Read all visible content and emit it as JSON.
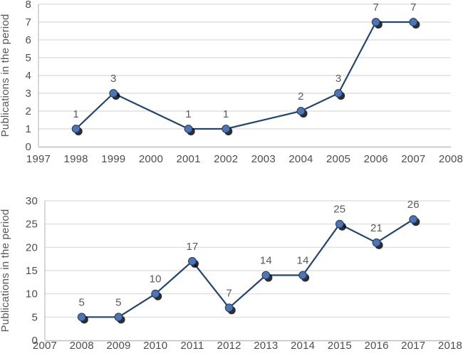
{
  "page": {
    "background": "#ffffff",
    "description": "Two stacked line charts of publications per year"
  },
  "colors": {
    "line": "#24466e",
    "marker_fill": "#4f74b2",
    "marker_stroke": "#1f3864",
    "marker_shadow": "#000000",
    "gridline": "#d9d9d9",
    "axis_line": "#bfbfbf",
    "tick_text": "#4d4d4d",
    "data_label_text": "#595959",
    "axis_title_text": "#595959"
  },
  "chart_data": [
    {
      "type": "line",
      "title": "",
      "xlabel": "",
      "ylabel": "Publications in the period",
      "x_ticks": [
        1997,
        1998,
        1999,
        2000,
        2001,
        2002,
        2003,
        2004,
        2005,
        2006,
        2007,
        2008
      ],
      "x": [
        1998,
        1999,
        2001,
        2002,
        2004,
        2005,
        2006,
        2007
      ],
      "values": [
        1,
        3,
        1,
        1,
        2,
        3,
        7,
        7
      ],
      "data_labels": [
        "1",
        "3",
        "1",
        "1",
        "2",
        "3",
        "7",
        "7"
      ],
      "ylim": [
        0,
        8
      ],
      "ytick_step": 1,
      "grid": true,
      "legend": "none"
    },
    {
      "type": "line",
      "title": "",
      "xlabel": "",
      "ylabel": "Publications in the period",
      "x_ticks": [
        2007,
        2008,
        2009,
        2010,
        2011,
        2012,
        2013,
        2014,
        2015,
        2016,
        2017,
        2018
      ],
      "x": [
        2008,
        2009,
        2010,
        2011,
        2012,
        2013,
        2014,
        2015,
        2016,
        2017
      ],
      "values": [
        5,
        5,
        10,
        17,
        7,
        14,
        14,
        25,
        21,
        26
      ],
      "data_labels": [
        "5",
        "5",
        "10",
        "17",
        "7",
        "14",
        "14",
        "25",
        "21",
        "26"
      ],
      "ylim": [
        0,
        30
      ],
      "ytick_step": 5,
      "grid": true,
      "legend": "none"
    }
  ]
}
